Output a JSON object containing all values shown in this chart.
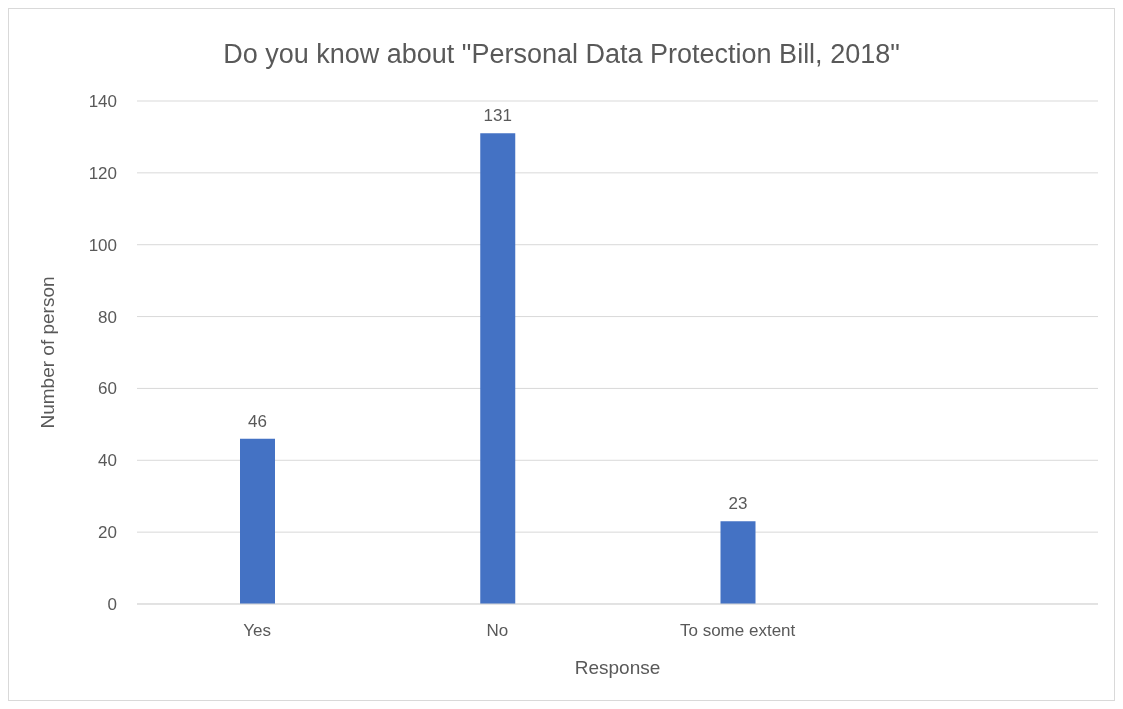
{
  "chart_data": {
    "type": "bar",
    "title": "Do you know about \"Personal Data Protection Bill, 2018\"",
    "xlabel": "Response",
    "ylabel": "Number of person",
    "categories": [
      "Yes",
      "No",
      "To some extent",
      null
    ],
    "values": [
      46,
      131,
      23,
      null
    ],
    "color": "#4472c4",
    "ylim": [
      0,
      140
    ],
    "yticks": [
      0,
      20,
      40,
      60,
      80,
      100,
      120,
      140
    ],
    "grid": "y",
    "data_labels": true
  }
}
